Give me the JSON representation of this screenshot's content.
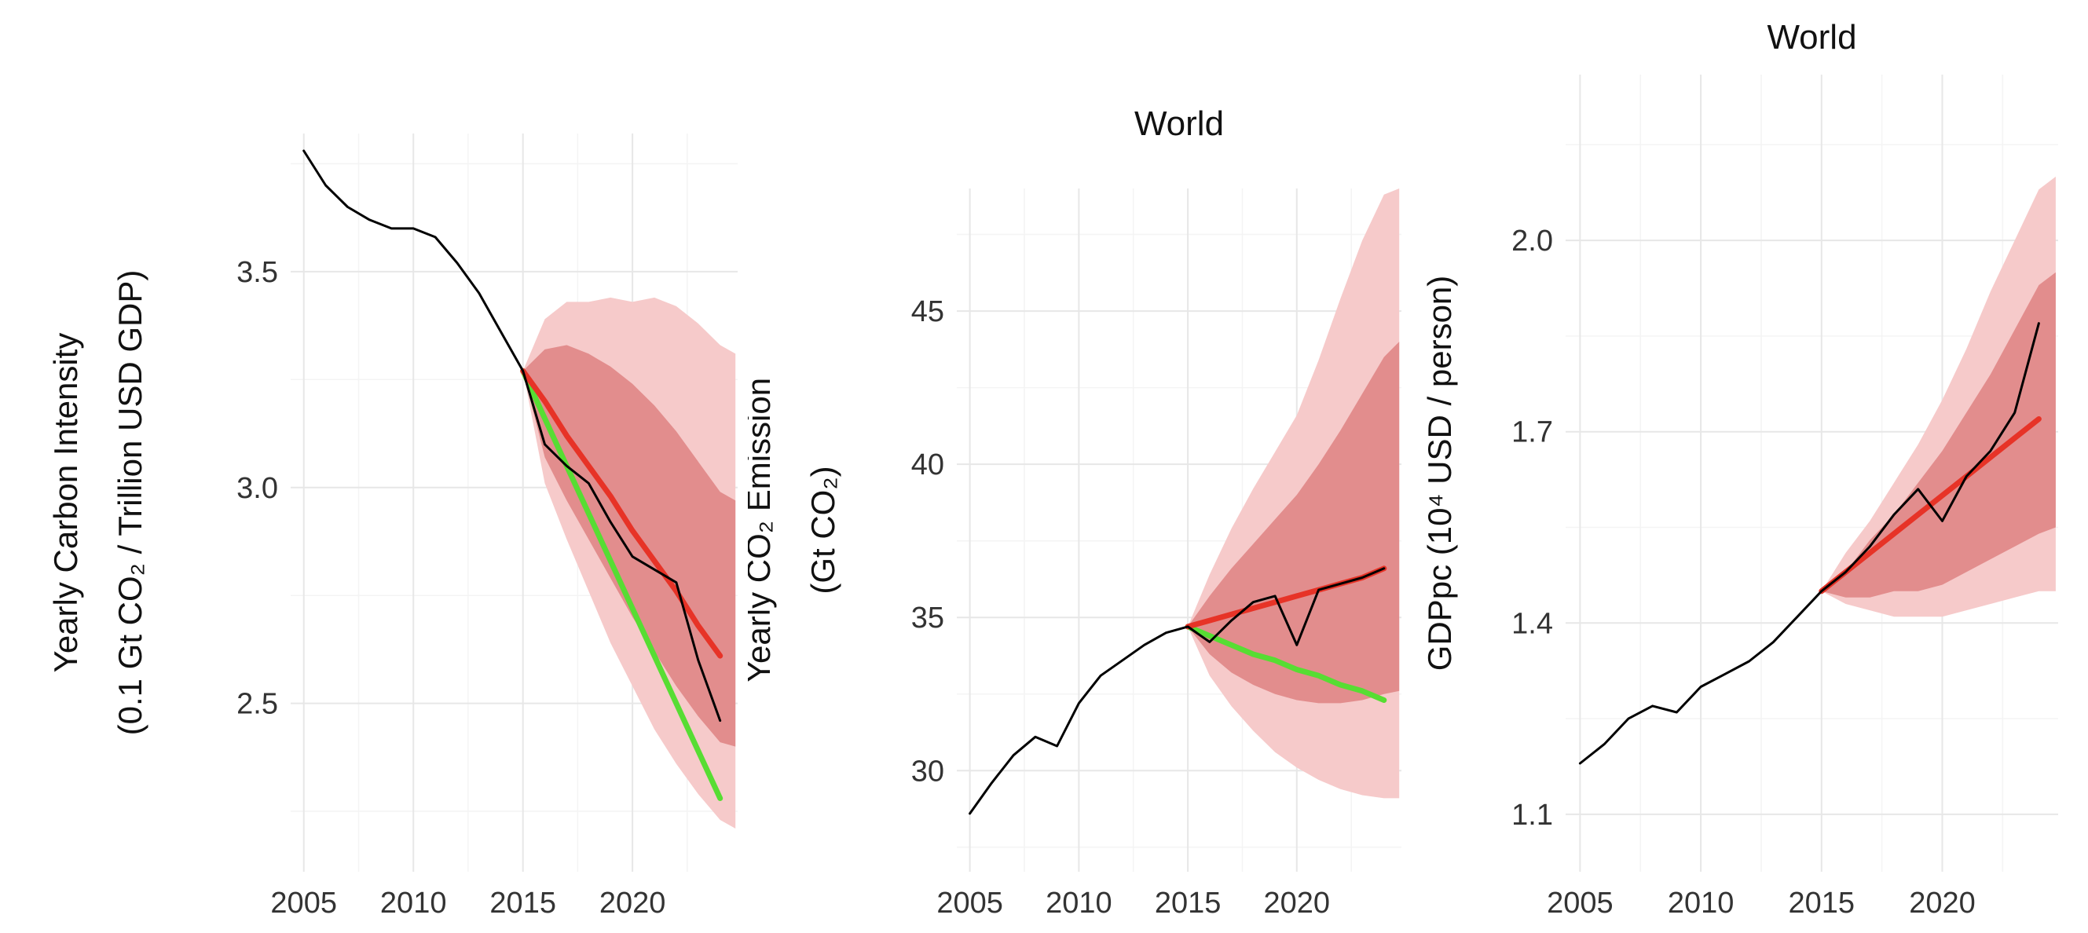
{
  "page": {
    "background": "#ffffff"
  },
  "colors": {
    "observed_line": "#000000",
    "projection_red": "#e73327",
    "projection_green": "#57dd33",
    "band_inner": "#e28d8d",
    "band_outer": "#f6caca",
    "grid_major": "#e7e7e7",
    "grid_minor": "#f4f4f4",
    "tick_text": "#333333",
    "label_text": "#111111"
  },
  "chart_data": [
    {
      "type": "line",
      "title": "",
      "ylabel_lines": [
        "Yearly Carbon Intensity",
        "(0.1 Gt CO₂ / Trillion USD GDP)"
      ],
      "xlabel": "",
      "x_ticks": [
        2005,
        2010,
        2015,
        2020
      ],
      "x_tick_labels": [
        "2005",
        "2010",
        "2015",
        "2020"
      ],
      "y_ticks": [
        2.5,
        3.0,
        3.5
      ],
      "y_tick_labels": [
        "2.5",
        "3.0",
        "3.5"
      ],
      "xlim": [
        2004.4,
        2024.8
      ],
      "ylim": [
        2.11,
        3.82
      ],
      "grid": true,
      "legend": "none",
      "observed": {
        "x": [
          2005,
          2006,
          2007,
          2008,
          2009,
          2010,
          2011,
          2012,
          2013,
          2014,
          2015,
          2016,
          2017,
          2018,
          2019,
          2020,
          2021,
          2022,
          2023,
          2024
        ],
        "y": [
          3.78,
          3.7,
          3.65,
          3.62,
          3.6,
          3.6,
          3.58,
          3.52,
          3.45,
          3.36,
          3.27,
          3.1,
          3.05,
          3.01,
          2.92,
          2.84,
          2.81,
          2.78,
          2.6,
          2.46
        ]
      },
      "projection_red": {
        "x": [
          2015,
          2016,
          2017,
          2018,
          2019,
          2020,
          2021,
          2022,
          2023,
          2024
        ],
        "y": [
          3.27,
          3.2,
          3.12,
          3.05,
          2.98,
          2.9,
          2.83,
          2.76,
          2.68,
          2.61
        ]
      },
      "projection_green": {
        "x": [
          2015,
          2016,
          2017,
          2018,
          2019,
          2020,
          2021,
          2022,
          2023,
          2024
        ],
        "y": [
          3.27,
          3.16,
          3.05,
          2.94,
          2.83,
          2.72,
          2.61,
          2.5,
          2.39,
          2.28
        ]
      },
      "band_outer": {
        "x": [
          2015,
          2016,
          2017,
          2018,
          2019,
          2020,
          2021,
          2022,
          2023,
          2024,
          2024.7
        ],
        "upper": [
          3.27,
          3.39,
          3.43,
          3.43,
          3.44,
          3.43,
          3.44,
          3.42,
          3.38,
          3.33,
          3.31
        ],
        "lower": [
          3.27,
          3.01,
          2.88,
          2.76,
          2.64,
          2.54,
          2.44,
          2.36,
          2.29,
          2.23,
          2.21
        ]
      },
      "band_inner": {
        "x": [
          2015,
          2016,
          2017,
          2018,
          2019,
          2020,
          2021,
          2022,
          2023,
          2024,
          2024.7
        ],
        "upper": [
          3.27,
          3.32,
          3.33,
          3.31,
          3.28,
          3.24,
          3.19,
          3.13,
          3.06,
          2.99,
          2.97
        ],
        "lower": [
          3.27,
          3.07,
          2.97,
          2.88,
          2.79,
          2.7,
          2.62,
          2.54,
          2.47,
          2.41,
          2.4
        ]
      }
    },
    {
      "type": "line",
      "title": "World",
      "ylabel_lines": [
        "Yearly CO₂ Emission",
        "(Gt CO₂)"
      ],
      "xlabel": "",
      "x_ticks": [
        2005,
        2010,
        2015,
        2020
      ],
      "x_tick_labels": [
        "2005",
        "2010",
        "2015",
        "2020"
      ],
      "y_ticks": [
        30,
        35,
        40,
        45
      ],
      "y_tick_labels": [
        "30",
        "35",
        "40",
        "45"
      ],
      "xlim": [
        2004.4,
        2024.8
      ],
      "ylim": [
        26.7,
        49.0
      ],
      "grid": true,
      "legend": "none",
      "observed": {
        "x": [
          2005,
          2006,
          2007,
          2008,
          2009,
          2010,
          2011,
          2012,
          2013,
          2014,
          2015,
          2016,
          2017,
          2018,
          2019,
          2020,
          2021,
          2022,
          2023,
          2024
        ],
        "y": [
          28.6,
          29.6,
          30.5,
          31.1,
          30.8,
          32.2,
          33.1,
          33.6,
          34.1,
          34.5,
          34.7,
          34.2,
          34.9,
          35.5,
          35.7,
          34.1,
          35.9,
          36.1,
          36.3,
          36.6
        ]
      },
      "projection_red": {
        "x": [
          2015,
          2016,
          2017,
          2018,
          2019,
          2020,
          2021,
          2022,
          2023,
          2024
        ],
        "y": [
          34.7,
          34.9,
          35.1,
          35.3,
          35.5,
          35.7,
          35.9,
          36.1,
          36.3,
          36.6
        ]
      },
      "projection_green": {
        "x": [
          2015,
          2016,
          2017,
          2018,
          2019,
          2020,
          2021,
          2022,
          2023,
          2024
        ],
        "y": [
          34.7,
          34.4,
          34.1,
          33.8,
          33.6,
          33.3,
          33.1,
          32.8,
          32.6,
          32.3
        ]
      },
      "band_outer": {
        "x": [
          2015,
          2016,
          2017,
          2018,
          2019,
          2020,
          2021,
          2022,
          2023,
          2024,
          2024.7
        ],
        "upper": [
          34.7,
          36.4,
          37.9,
          39.2,
          40.4,
          41.6,
          43.4,
          45.4,
          47.3,
          48.8,
          49.0
        ],
        "lower": [
          34.7,
          33.1,
          32.1,
          31.3,
          30.6,
          30.1,
          29.7,
          29.4,
          29.2,
          29.1,
          29.1
        ]
      },
      "band_inner": {
        "x": [
          2015,
          2016,
          2017,
          2018,
          2019,
          2020,
          2021,
          2022,
          2023,
          2024,
          2024.7
        ],
        "upper": [
          34.7,
          35.7,
          36.6,
          37.4,
          38.2,
          39.0,
          40.0,
          41.1,
          42.3,
          43.5,
          44.0
        ],
        "lower": [
          34.7,
          33.8,
          33.2,
          32.8,
          32.5,
          32.3,
          32.2,
          32.2,
          32.3,
          32.5,
          32.6
        ]
      }
    },
    {
      "type": "line",
      "title": "World",
      "ylabel_lines": [
        "GDPpc (10⁴ USD / person)"
      ],
      "xlabel": "",
      "x_ticks": [
        2005,
        2010,
        2015,
        2020
      ],
      "x_tick_labels": [
        "2005",
        "2010",
        "2015",
        "2020"
      ],
      "y_ticks": [
        1.1,
        1.4,
        1.7,
        2.0
      ],
      "y_tick_labels": [
        "1.1",
        "1.4",
        "1.7",
        "2.0"
      ],
      "xlim": [
        2004.4,
        2024.8
      ],
      "ylim": [
        1.01,
        2.26
      ],
      "grid": true,
      "legend": "none",
      "observed": {
        "x": [
          2005,
          2006,
          2007,
          2008,
          2009,
          2010,
          2011,
          2012,
          2013,
          2014,
          2015,
          2016,
          2017,
          2018,
          2019,
          2020,
          2021,
          2022,
          2023,
          2024
        ],
        "y": [
          1.18,
          1.21,
          1.25,
          1.27,
          1.26,
          1.3,
          1.32,
          1.34,
          1.37,
          1.41,
          1.45,
          1.48,
          1.52,
          1.57,
          1.61,
          1.56,
          1.63,
          1.67,
          1.73,
          1.87
        ]
      },
      "projection_red": {
        "x": [
          2015,
          2016,
          2017,
          2018,
          2019,
          2020,
          2021,
          2022,
          2023,
          2024
        ],
        "y": [
          1.45,
          1.48,
          1.51,
          1.54,
          1.57,
          1.6,
          1.63,
          1.66,
          1.69,
          1.72
        ]
      },
      "band_outer": {
        "x": [
          2015,
          2016,
          2017,
          2018,
          2019,
          2020,
          2021,
          2022,
          2023,
          2024,
          2024.7
        ],
        "upper": [
          1.45,
          1.51,
          1.56,
          1.62,
          1.68,
          1.75,
          1.83,
          1.92,
          2.0,
          2.08,
          2.1
        ],
        "lower": [
          1.45,
          1.43,
          1.42,
          1.41,
          1.41,
          1.41,
          1.42,
          1.43,
          1.44,
          1.45,
          1.45
        ]
      },
      "band_inner": {
        "x": [
          2015,
          2016,
          2017,
          2018,
          2019,
          2020,
          2021,
          2022,
          2023,
          2024,
          2024.7
        ],
        "upper": [
          1.45,
          1.48,
          1.53,
          1.57,
          1.62,
          1.67,
          1.73,
          1.79,
          1.86,
          1.93,
          1.95
        ],
        "lower": [
          1.45,
          1.44,
          1.44,
          1.45,
          1.45,
          1.46,
          1.48,
          1.5,
          1.52,
          1.54,
          1.55
        ]
      }
    }
  ]
}
